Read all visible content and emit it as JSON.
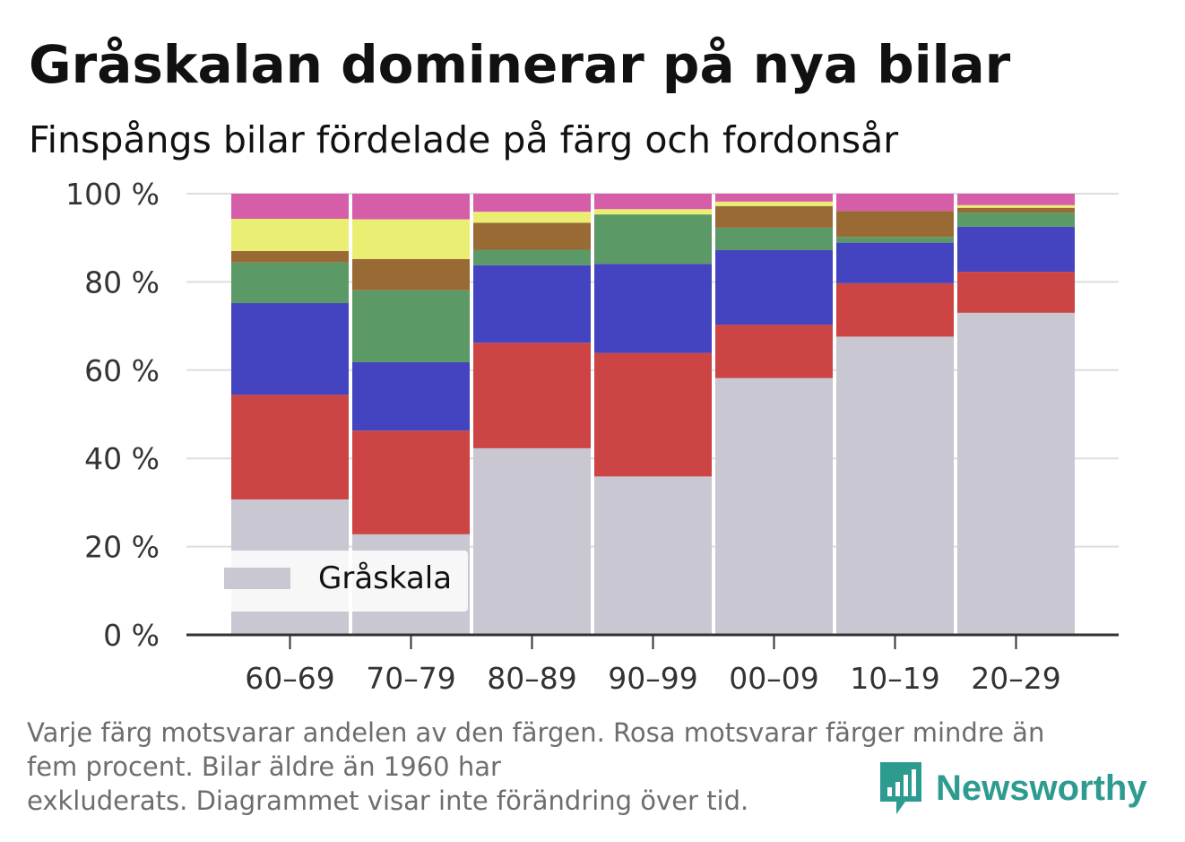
{
  "header": {
    "title": "Gråskalan dominerar på nya bilar",
    "subtitle": "Finspångs bilar fördelade på färg och fordonsår"
  },
  "footnote": {
    "line1": "Varje färg motsvarar andelen av den färgen. Rosa motsvarar färger mindre än",
    "line2": "fem procent. Bilar äldre än 1960 har",
    "line3": "exkluderats. Diagrammet visar inte förändring över tid."
  },
  "brand": {
    "name": "Newsworthy",
    "logo_icon": "bar-chart-speech-bubble-icon",
    "color": "#2e9b91"
  },
  "chart_data": {
    "type": "bar",
    "stacked": true,
    "categories": [
      "60–69",
      "70–79",
      "80–89",
      "90–99",
      "00–09",
      "10–19",
      "20–29"
    ],
    "ylim": [
      0,
      100
    ],
    "yticks": [
      0,
      20,
      40,
      60,
      80,
      100
    ],
    "ytick_labels": [
      "0 %",
      "20 %",
      "40 %",
      "60 %",
      "80 %",
      "100 %"
    ],
    "grid": true,
    "legend": {
      "position": "bottom-left",
      "entries": [
        "Gråskala"
      ]
    },
    "series": [
      {
        "name": "Gråskala",
        "color": "#c8c7d2",
        "values": [
          30.7,
          22.8,
          42.3,
          35.9,
          58.2,
          67.6,
          73.0
        ]
      },
      {
        "color": "#cc4444",
        "values": [
          23.7,
          23.5,
          23.9,
          28.0,
          12.1,
          12.1,
          9.3
        ]
      },
      {
        "color": "#4444c0",
        "values": [
          20.8,
          15.5,
          17.6,
          20.2,
          16.9,
          9.2,
          10.2
        ]
      },
      {
        "color": "#5b9966",
        "values": [
          9.2,
          16.3,
          3.5,
          11.2,
          5.1,
          1.3,
          3.2
        ]
      },
      {
        "color": "#9a6a35",
        "values": [
          2.6,
          7.1,
          6.1,
          0,
          4.9,
          5.9,
          1.1
        ]
      },
      {
        "color": "#eaee73",
        "values": [
          7.3,
          9.0,
          2.5,
          1.2,
          1.0,
          0,
          0.6
        ]
      },
      {
        "color": "#d65ea8",
        "values": [
          5.7,
          5.8,
          4.1,
          3.5,
          1.8,
          3.9,
          2.6
        ]
      }
    ]
  }
}
